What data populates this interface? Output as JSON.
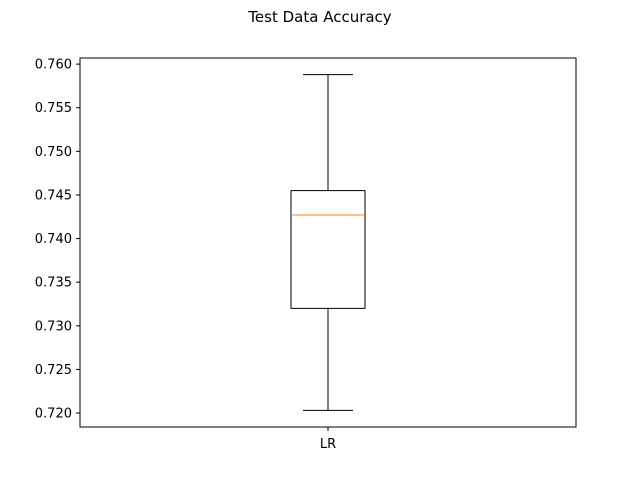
{
  "chart_data": {
    "type": "box",
    "title": "Test Data Accuracy",
    "xlabel": "",
    "ylabel": "",
    "categories": [
      "LR"
    ],
    "boxes": [
      {
        "label": "LR",
        "whisker_low": 0.7203,
        "q1": 0.732,
        "median": 0.7427,
        "q3": 0.7455,
        "whisker_high": 0.7588
      }
    ],
    "ylim": [
      0.7184,
      0.7607
    ],
    "yticks": [
      0.72,
      0.725,
      0.73,
      0.735,
      0.74,
      0.745,
      0.75,
      0.755,
      0.76
    ],
    "ytick_labels": [
      "0.720",
      "0.725",
      "0.730",
      "0.735",
      "0.740",
      "0.745",
      "0.750",
      "0.755",
      "0.760"
    ],
    "grid": false,
    "colors": {
      "box": "#000000",
      "median": "#ff7f0e"
    }
  }
}
